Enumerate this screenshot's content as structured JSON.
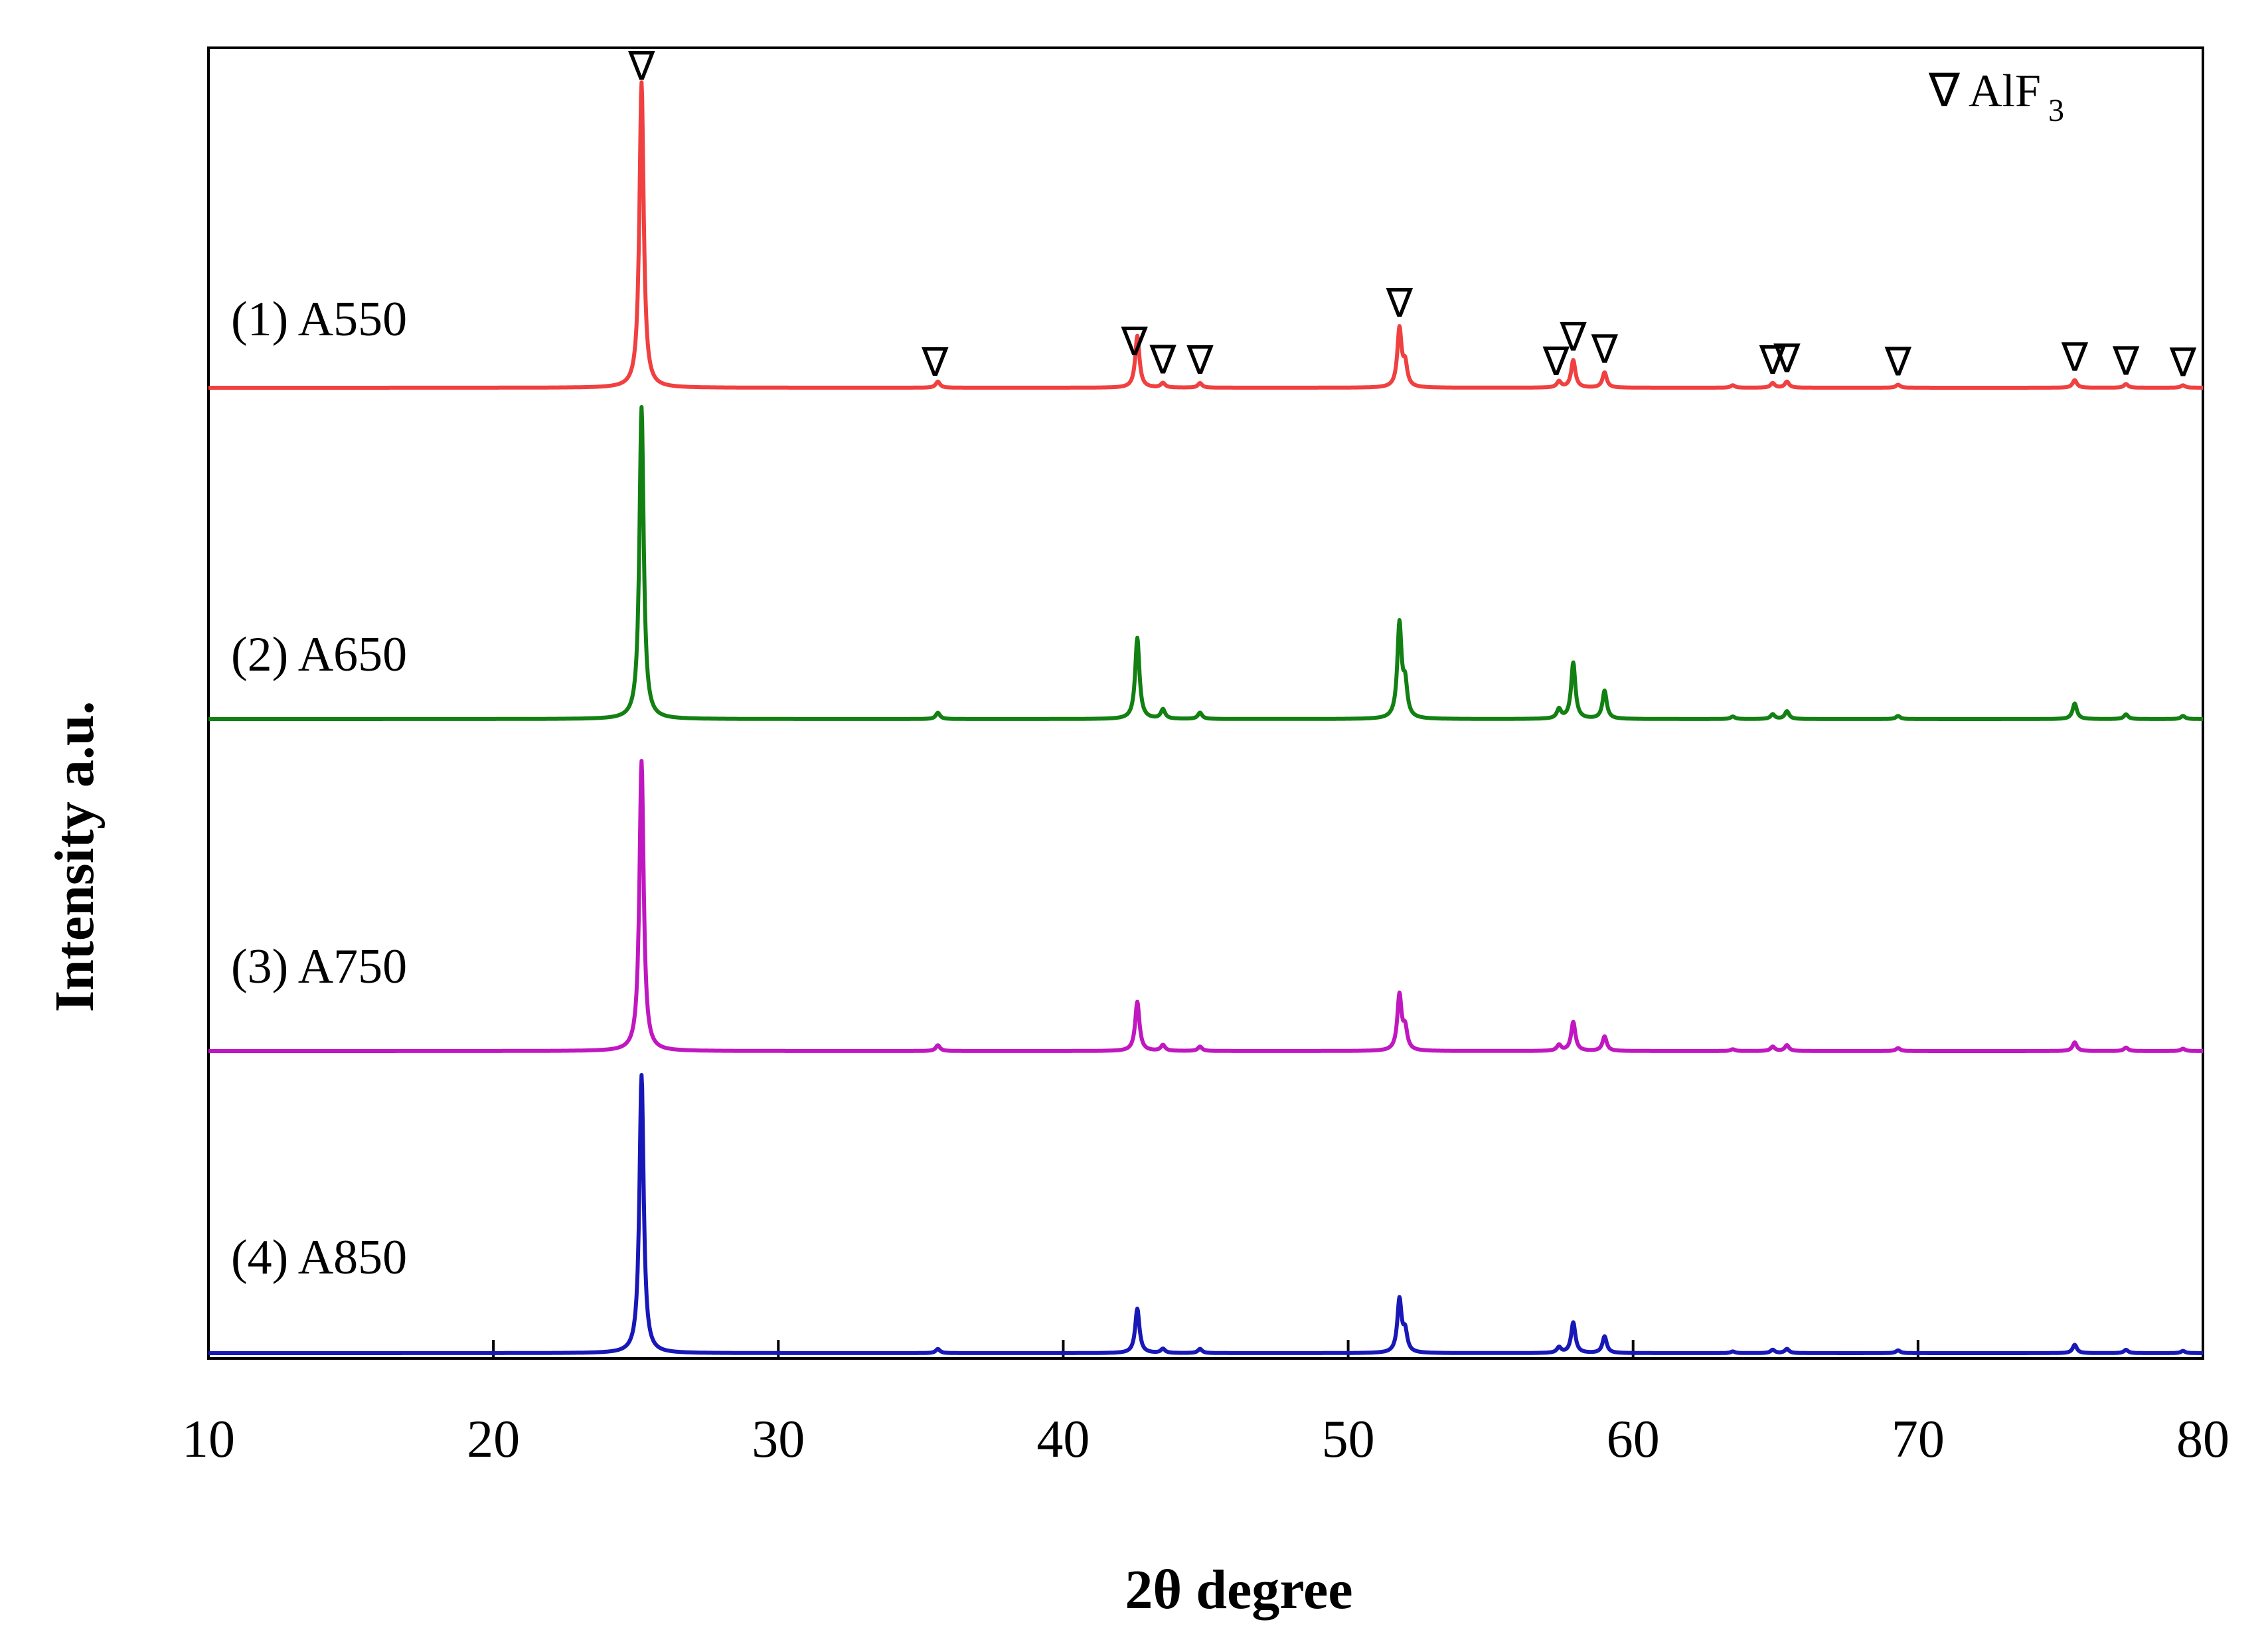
{
  "chart_data": {
    "type": "line",
    "title": "",
    "xlabel": "2θ degree",
    "ylabel": "Intensity a.u.",
    "xlim": [
      10,
      80
    ],
    "xticks": [
      10,
      20,
      30,
      40,
      50,
      60,
      70,
      80
    ],
    "grid": false,
    "legend": {
      "position": "top-right",
      "symbol": "∇",
      "label": "AlF",
      "subscript": "3"
    },
    "marker_symbol": "∇",
    "marker_positions": [
      25.2,
      35.5,
      42.5,
      43.5,
      44.8,
      51.8,
      57.3,
      57.9,
      59.0,
      64.9,
      65.4,
      69.3,
      75.5,
      77.3,
      79.3
    ],
    "series": [
      {
        "name": "(1) A550",
        "color": "#f04040",
        "peaks": [
          [
            25.2,
            100
          ],
          [
            35.6,
            2
          ],
          [
            42.6,
            17
          ],
          [
            43.5,
            1.5
          ],
          [
            44.8,
            1.5
          ],
          [
            51.8,
            19
          ],
          [
            52.0,
            7
          ],
          [
            57.4,
            2
          ],
          [
            57.9,
            9
          ],
          [
            59.0,
            5
          ],
          [
            63.5,
            0.8
          ],
          [
            64.9,
            1.5
          ],
          [
            65.4,
            2
          ],
          [
            69.3,
            1
          ],
          [
            75.5,
            2.5
          ],
          [
            77.3,
            1.2
          ],
          [
            79.3,
            0.8
          ]
        ]
      },
      {
        "name": "(2) A650",
        "color": "#128012",
        "peaks": [
          [
            25.2,
            100
          ],
          [
            35.6,
            2
          ],
          [
            42.6,
            26
          ],
          [
            43.5,
            3
          ],
          [
            44.8,
            2
          ],
          [
            51.8,
            30
          ],
          [
            52.0,
            10
          ],
          [
            57.4,
            3
          ],
          [
            57.9,
            18
          ],
          [
            59.0,
            9
          ],
          [
            63.5,
            0.8
          ],
          [
            64.9,
            1.5
          ],
          [
            65.4,
            2.5
          ],
          [
            69.3,
            1
          ],
          [
            75.5,
            5
          ],
          [
            77.3,
            1.5
          ],
          [
            79.3,
            1
          ]
        ]
      },
      {
        "name": "(3) A750",
        "color": "#c018c0",
        "peaks": [
          [
            25.2,
            100
          ],
          [
            35.6,
            2
          ],
          [
            42.6,
            17
          ],
          [
            43.5,
            2
          ],
          [
            44.8,
            1.5
          ],
          [
            51.8,
            19
          ],
          [
            52.0,
            7
          ],
          [
            57.4,
            2
          ],
          [
            57.9,
            10
          ],
          [
            59.0,
            5
          ],
          [
            63.5,
            0.6
          ],
          [
            64.9,
            1.5
          ],
          [
            65.4,
            2
          ],
          [
            69.3,
            1
          ],
          [
            75.5,
            3
          ],
          [
            77.3,
            1.2
          ],
          [
            79.3,
            0.8
          ]
        ]
      },
      {
        "name": "(4) A850",
        "color": "#1818b8",
        "peaks": [
          [
            25.2,
            100
          ],
          [
            35.6,
            1.5
          ],
          [
            42.6,
            16
          ],
          [
            43.5,
            1.5
          ],
          [
            44.8,
            1.5
          ],
          [
            51.8,
            19
          ],
          [
            52.0,
            7
          ],
          [
            57.4,
            2
          ],
          [
            57.9,
            11
          ],
          [
            59.0,
            6
          ],
          [
            63.5,
            0.6
          ],
          [
            64.9,
            1.2
          ],
          [
            65.4,
            1.5
          ],
          [
            69.3,
            1
          ],
          [
            75.5,
            3
          ],
          [
            77.3,
            1.2
          ],
          [
            79.3,
            0.8
          ]
        ]
      }
    ]
  }
}
